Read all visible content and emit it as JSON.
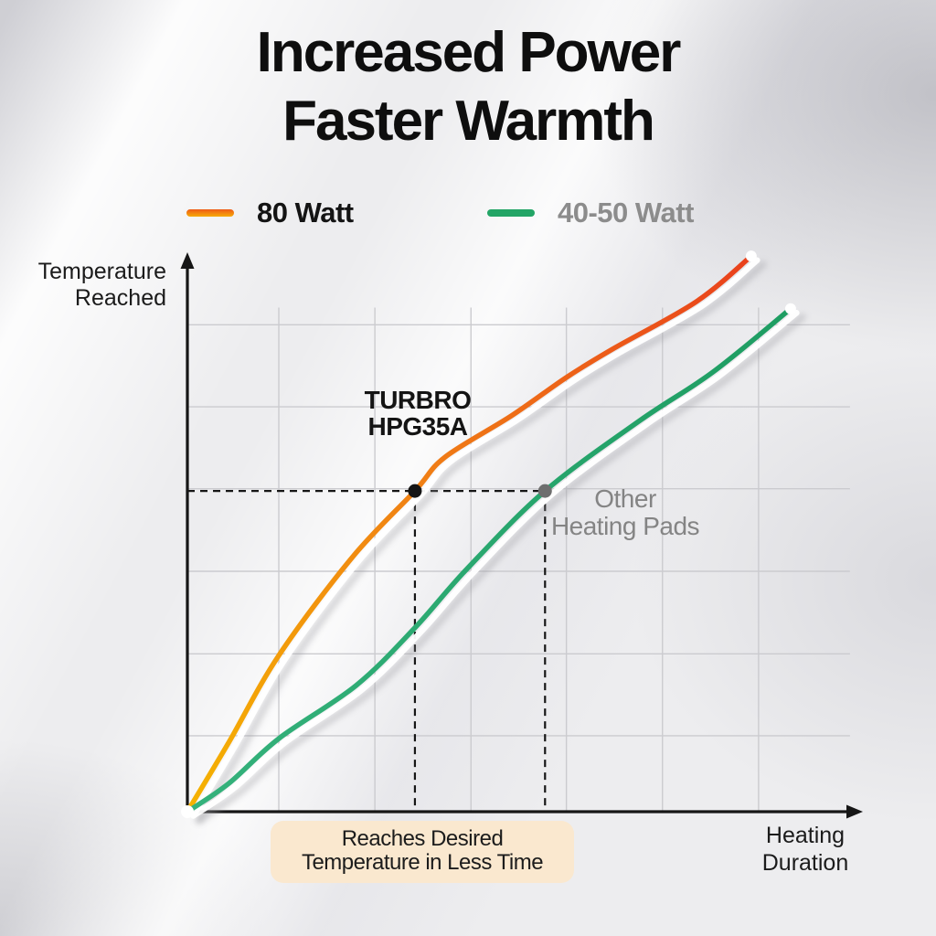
{
  "title": {
    "line1": "Increased Power",
    "line2": "Faster Warmth"
  },
  "legend": {
    "items": [
      {
        "label": "80 Watt",
        "swatch_colors": [
          "#EE5A16",
          "#F6AB07"
        ],
        "label_color": "#141414"
      },
      {
        "label": "40-50 Watt",
        "swatch_colors": [
          "#23A566",
          "#23A566"
        ],
        "label_color": "#8C8C8C"
      }
    ]
  },
  "axis_labels": {
    "y1": "Temperature",
    "y2": "Reached",
    "x1": "Heating",
    "x2": "Duration"
  },
  "annotations": {
    "turbro1": "TURBRO",
    "turbro2": "HPG35A",
    "other1": "Other",
    "other2": "Heating Pads",
    "callout1": "Reaches Desired",
    "callout2": "Temperature in Less Time",
    "callout_bg": "#FAE8CF"
  },
  "chart_data": {
    "type": "line",
    "title": "Increased Power Faster Warmth",
    "xlabel": "Heating Duration",
    "ylabel": "Temperature Reached",
    "x_range": [
      0,
      100
    ],
    "y_range": [
      0,
      100
    ],
    "legend_position": "top",
    "axis_color": "#161616",
    "grid": {
      "on": true,
      "color": "#CBCBCF",
      "x_lines": [
        13.7,
        28.1,
        42.5,
        56.8,
        71.2,
        85.6
      ],
      "y_lines": [
        13.7,
        28.5,
        43.4,
        58.3,
        73.1,
        87.9
      ],
      "v_extent": 91,
      "h_extent": 99.3
    },
    "series": [
      {
        "name": "80 Watt",
        "annotation": "TURBRO HPG35A",
        "color_stops": [
          "#F5B301",
          "#F08015",
          "#E9401C"
        ],
        "points": [
          [
            0,
            0
          ],
          [
            6.2,
            12.5
          ],
          [
            13.7,
            28.2
          ],
          [
            24.7,
            45.9
          ],
          [
            34.1,
            57.9
          ],
          [
            38.6,
            64.0
          ],
          [
            48.6,
            71.5
          ],
          [
            56.8,
            78.4
          ],
          [
            63.7,
            83.5
          ],
          [
            76.3,
            92.1
          ],
          [
            84.5,
            100.3
          ]
        ]
      },
      {
        "name": "40-50 Watt",
        "annotation": "Other Heating Pads",
        "color_stops": [
          "#35B27C",
          "#1E9D62"
        ],
        "points": [
          [
            0,
            0
          ],
          [
            6.2,
            5.1
          ],
          [
            13.7,
            13.2
          ],
          [
            25.3,
            22.8
          ],
          [
            34.1,
            33.2
          ],
          [
            41.8,
            43.7
          ],
          [
            53.6,
            57.9
          ],
          [
            67.8,
            70.6
          ],
          [
            78.8,
            79.4
          ],
          [
            90.4,
            90.8
          ]
        ]
      }
    ],
    "markers": [
      {
        "x": 34.1,
        "y": 57.9,
        "color": "#151515",
        "series": "80 Watt"
      },
      {
        "x": 53.6,
        "y": 57.9,
        "color": "#6E6E6E",
        "series": "40-50 Watt"
      }
    ],
    "guides": {
      "temperature_level": 57.9,
      "h_from_x": 0,
      "h_to_x": 53.6,
      "v_drops": [
        34.1,
        53.6
      ]
    }
  }
}
